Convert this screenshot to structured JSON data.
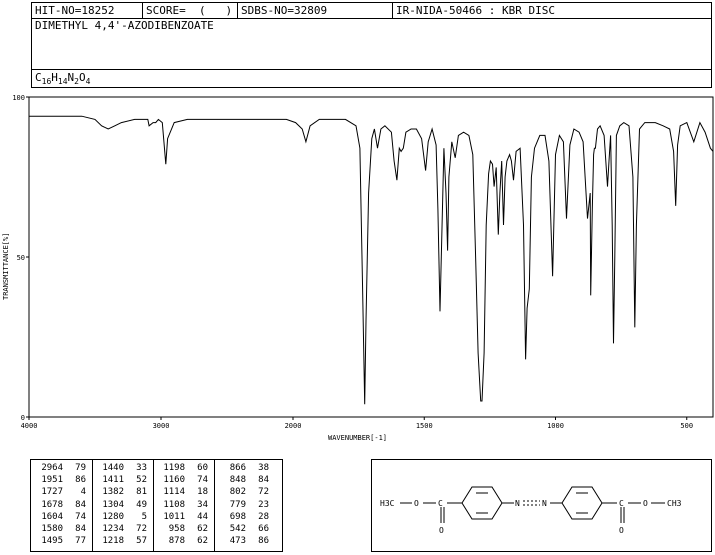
{
  "header": {
    "hit_no": "HIT-NO=18252",
    "score": "SCORE=  (   )",
    "sdbs_no": "SDBS-NO=32809",
    "ir_info": "IR-NIDA-50466 : KBR DISC"
  },
  "compound": {
    "name": "DIMETHYL 4,4'-AZODIBENZOATE",
    "formula": {
      "c": "C",
      "c_n": "16",
      "h": "H",
      "h_n": "14",
      "n": "N",
      "n_n": "2",
      "o": "O",
      "o_n": "4"
    }
  },
  "chart_data": {
    "type": "line",
    "xlabel": "WAVENUMBER[-1]",
    "ylabel": "TRANSMITTANCE[%]",
    "xlim": [
      4000,
      400
    ],
    "ylim": [
      0,
      100
    ],
    "x_ticks": [
      "4000",
      "3000",
      "2000",
      "1500",
      "1000",
      "500"
    ],
    "y_ticks": [
      "0",
      "50",
      "100"
    ],
    "x_reversed": true,
    "x_scale_break": "linear 4000-2000, expanded 2000-400",
    "series": [
      {
        "name": "",
        "points": [
          [
            4000,
            94
          ],
          [
            3800,
            94
          ],
          [
            3600,
            94
          ],
          [
            3500,
            93
          ],
          [
            3450,
            91
          ],
          [
            3400,
            90
          ],
          [
            3350,
            91
          ],
          [
            3300,
            92
          ],
          [
            3200,
            93
          ],
          [
            3100,
            93
          ],
          [
            3090,
            91
          ],
          [
            3060,
            92
          ],
          [
            3040,
            92
          ],
          [
            3020,
            93
          ],
          [
            2990,
            92
          ],
          [
            2964,
            79
          ],
          [
            2950,
            87
          ],
          [
            2900,
            92
          ],
          [
            2800,
            93
          ],
          [
            2600,
            93
          ],
          [
            2400,
            93
          ],
          [
            2200,
            93
          ],
          [
            2050,
            93
          ],
          [
            1990,
            92
          ],
          [
            1965,
            90
          ],
          [
            1951,
            86
          ],
          [
            1935,
            91
          ],
          [
            1900,
            93
          ],
          [
            1800,
            93
          ],
          [
            1760,
            91
          ],
          [
            1745,
            84
          ],
          [
            1735,
            40
          ],
          [
            1727,
            4
          ],
          [
            1722,
            30
          ],
          [
            1712,
            70
          ],
          [
            1700,
            87
          ],
          [
            1690,
            90
          ],
          [
            1678,
            84
          ],
          [
            1665,
            90
          ],
          [
            1650,
            91
          ],
          [
            1625,
            89
          ],
          [
            1615,
            80
          ],
          [
            1604,
            74
          ],
          [
            1595,
            84
          ],
          [
            1588,
            83
          ],
          [
            1580,
            84
          ],
          [
            1570,
            89
          ],
          [
            1550,
            90
          ],
          [
            1530,
            90
          ],
          [
            1510,
            87
          ],
          [
            1495,
            77
          ],
          [
            1485,
            86
          ],
          [
            1470,
            90
          ],
          [
            1455,
            85
          ],
          [
            1448,
            65
          ],
          [
            1440,
            33
          ],
          [
            1435,
            50
          ],
          [
            1425,
            84
          ],
          [
            1417,
            70
          ],
          [
            1411,
            52
          ],
          [
            1406,
            75
          ],
          [
            1395,
            86
          ],
          [
            1382,
            81
          ],
          [
            1370,
            88
          ],
          [
            1350,
            89
          ],
          [
            1330,
            88
          ],
          [
            1315,
            82
          ],
          [
            1304,
            49
          ],
          [
            1295,
            20
          ],
          [
            1285,
            5
          ],
          [
            1280,
            5
          ],
          [
            1272,
            20
          ],
          [
            1264,
            60
          ],
          [
            1255,
            76
          ],
          [
            1248,
            80
          ],
          [
            1240,
            79
          ],
          [
            1234,
            72
          ],
          [
            1226,
            78
          ],
          [
            1218,
            57
          ],
          [
            1212,
            70
          ],
          [
            1205,
            80
          ],
          [
            1198,
            60
          ],
          [
            1192,
            75
          ],
          [
            1185,
            80
          ],
          [
            1175,
            82
          ],
          [
            1168,
            80
          ],
          [
            1160,
            74
          ],
          [
            1150,
            83
          ],
          [
            1135,
            84
          ],
          [
            1122,
            60
          ],
          [
            1114,
            18
          ],
          [
            1108,
            34
          ],
          [
            1100,
            40
          ],
          [
            1092,
            75
          ],
          [
            1080,
            84
          ],
          [
            1060,
            88
          ],
          [
            1040,
            88
          ],
          [
            1025,
            80
          ],
          [
            1011,
            44
          ],
          [
            1000,
            82
          ],
          [
            985,
            88
          ],
          [
            970,
            86
          ],
          [
            958,
            62
          ],
          [
            945,
            85
          ],
          [
            930,
            90
          ],
          [
            910,
            89
          ],
          [
            895,
            86
          ],
          [
            878,
            62
          ],
          [
            868,
            70
          ],
          [
            866,
            38
          ],
          [
            860,
            65
          ],
          [
            855,
            82
          ],
          [
            852,
            84
          ],
          [
            848,
            84
          ],
          [
            840,
            90
          ],
          [
            830,
            91
          ],
          [
            815,
            88
          ],
          [
            802,
            72
          ],
          [
            796,
            80
          ],
          [
            790,
            88
          ],
          [
            784,
            60
          ],
          [
            779,
            23
          ],
          [
            774,
            50
          ],
          [
            768,
            88
          ],
          [
            755,
            91
          ],
          [
            740,
            92
          ],
          [
            720,
            91
          ],
          [
            705,
            75
          ],
          [
            698,
            28
          ],
          [
            692,
            60
          ],
          [
            680,
            90
          ],
          [
            660,
            92
          ],
          [
            620,
            92
          ],
          [
            590,
            91
          ],
          [
            565,
            90
          ],
          [
            550,
            83
          ],
          [
            542,
            66
          ],
          [
            535,
            85
          ],
          [
            525,
            91
          ],
          [
            500,
            92
          ],
          [
            473,
            86
          ],
          [
            450,
            92
          ],
          [
            430,
            89
          ],
          [
            410,
            84
          ],
          [
            400,
            83
          ]
        ]
      }
    ],
    "peak_table": [
      [
        "2964",
        "79"
      ],
      [
        "1951",
        "86"
      ],
      [
        "1727",
        "4"
      ],
      [
        "1678",
        "84"
      ],
      [
        "1604",
        "74"
      ],
      [
        "1580",
        "84"
      ],
      [
        "1495",
        "77"
      ],
      [
        "1440",
        "33"
      ],
      [
        "1411",
        "52"
      ],
      [
        "1382",
        "81"
      ],
      [
        "1304",
        "49"
      ],
      [
        "1280",
        "5"
      ],
      [
        "1234",
        "72"
      ],
      [
        "1218",
        "57"
      ],
      [
        "1198",
        "60"
      ],
      [
        "1160",
        "74"
      ],
      [
        "1114",
        "18"
      ],
      [
        "1108",
        "34"
      ],
      [
        "1011",
        "44"
      ],
      [
        "958",
        "62"
      ],
      [
        "878",
        "62"
      ],
      [
        "866",
        "38"
      ],
      [
        "848",
        "84"
      ],
      [
        "802",
        "72"
      ],
      [
        "779",
        "23"
      ],
      [
        "698",
        "28"
      ],
      [
        "542",
        "66"
      ],
      [
        "473",
        "86"
      ]
    ]
  },
  "structure": {
    "left_group": "H3C",
    "o1": "O",
    "c1": "C",
    "o2": "O",
    "n1": "N",
    "n2": "N",
    "c2": "C",
    "o3": "O",
    "o4": "O",
    "right_group": "CH3"
  }
}
